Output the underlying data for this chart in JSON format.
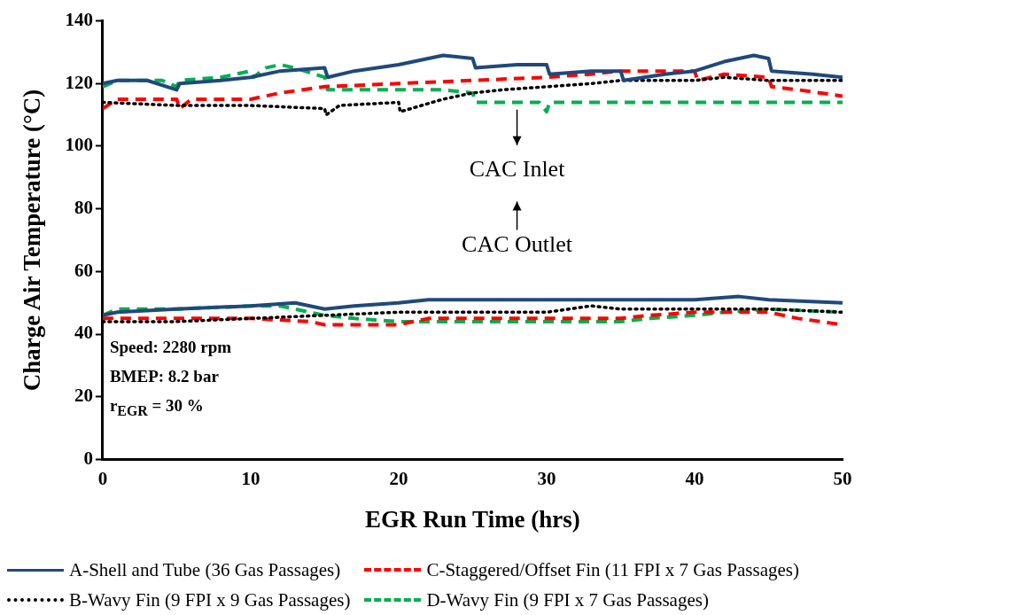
{
  "chart_data": {
    "type": "line",
    "xlabel": "EGR Run Time (hrs)",
    "ylabel": "Charge Air Temperature (°C)",
    "xlim": [
      0,
      50
    ],
    "xticks": [
      0,
      10,
      20,
      30,
      40,
      50
    ],
    "ylim": [
      0,
      140
    ],
    "yticks": [
      0,
      20,
      40,
      60,
      80,
      100,
      120,
      140
    ],
    "grid": false,
    "legend": "bottom",
    "marker": "none",
    "series": [
      {
        "name": "A-Shell and Tube (36 Gas Passages)",
        "color": "#1f497d",
        "line_style": "solid",
        "x": [
          0,
          1,
          3,
          5,
          5.2,
          8,
          10,
          12,
          15,
          15.2,
          17,
          20,
          23,
          25,
          25.2,
          28,
          30,
          30.2,
          33,
          35,
          35.2,
          38,
          40,
          42,
          44,
          45,
          45.2,
          48,
          50
        ],
        "values": [
          120,
          121,
          121,
          118,
          120,
          121,
          122,
          124,
          125,
          122,
          124,
          126,
          129,
          128,
          125,
          126,
          126,
          123,
          124,
          124,
          121,
          123,
          124,
          127,
          129,
          128,
          124,
          123,
          122
        ]
      },
      {
        "name": "B-Wavy Fin (9 FPI x 9 Gas Passages)",
        "color": "#000000",
        "line_style": "dotted",
        "x": [
          0,
          5,
          10,
          15,
          15.1,
          16,
          20,
          20.1,
          23,
          25,
          27,
          30,
          33,
          35,
          40,
          42,
          45,
          50
        ],
        "values": [
          114,
          113,
          113,
          112,
          110,
          113,
          114,
          111,
          115,
          117,
          118,
          119,
          120,
          121,
          121,
          122,
          121,
          121
        ]
      },
      {
        "name": "C-Staggered/Offset Fin (11 FPI x 7 Gas Passages)",
        "color": "#ff0000",
        "line_style": "dashed",
        "x": [
          0,
          1,
          5,
          5.2,
          6,
          10,
          12,
          15,
          20,
          25,
          30,
          33,
          35,
          40,
          40.2,
          42,
          45,
          45.2,
          47,
          50
        ],
        "values": [
          112,
          115,
          115,
          112,
          115,
          115,
          117,
          119,
          120,
          121,
          122,
          123,
          124,
          124,
          121,
          123,
          122,
          119,
          118,
          116
        ]
      },
      {
        "name": "D-Wavy Fin (9 FPI x 7 Gas Passages)",
        "color": "#00b050",
        "line_style": "dashed",
        "x": [
          0,
          1,
          4,
          5,
          5.2,
          8,
          10,
          10.2,
          11,
          12,
          13,
          15,
          15.2,
          18,
          20,
          23,
          25,
          25.2,
          28,
          29.5,
          30,
          30.2,
          35,
          40,
          45,
          50
        ],
        "values": [
          119,
          121,
          121,
          119,
          121,
          122,
          124,
          122,
          125,
          126,
          125,
          122,
          118,
          118,
          118,
          118,
          117,
          114,
          114,
          114,
          111,
          114,
          114,
          114,
          114,
          114
        ]
      },
      {
        "color": "#1f497d",
        "line_style": "solid",
        "x": [
          0,
          1,
          5,
          10,
          13,
          15,
          17,
          20,
          22,
          30,
          35,
          40,
          43,
          45,
          50
        ],
        "values": [
          46,
          47,
          48,
          49,
          50,
          48,
          49,
          50,
          51,
          51,
          51,
          51,
          52,
          51,
          50
        ]
      },
      {
        "color": "#000000",
        "line_style": "dotted",
        "x": [
          0,
          5,
          10,
          15,
          20,
          25,
          30,
          33,
          35,
          40,
          45,
          50
        ],
        "values": [
          44,
          44,
          45,
          46,
          47,
          47,
          47,
          49,
          48,
          48,
          48,
          47
        ]
      },
      {
        "color": "#ff0000",
        "line_style": "dashed",
        "x": [
          0,
          5,
          10,
          14,
          15,
          20,
          22,
          25,
          30,
          33,
          35,
          37,
          40,
          45,
          47,
          50
        ],
        "values": [
          45,
          45,
          45,
          44,
          43,
          43,
          45,
          45,
          45,
          45,
          45,
          46,
          47,
          47,
          45,
          43
        ]
      },
      {
        "color": "#00b050",
        "line_style": "dashed",
        "x": [
          0,
          1,
          5,
          10,
          12,
          14,
          15,
          17,
          20,
          25,
          30,
          35,
          37,
          40,
          42,
          45,
          50
        ],
        "values": [
          46,
          48,
          48,
          49,
          49,
          47,
          46,
          45,
          44,
          44,
          44,
          44,
          45,
          46,
          47,
          48,
          47
        ]
      }
    ],
    "annotations": [
      "CAC Inlet",
      "CAC Outlet",
      "Speed: 2280 rpm",
      "BMEP: 8.2 bar",
      "r$_{EGR}$ = 30 %"
    ]
  }
}
